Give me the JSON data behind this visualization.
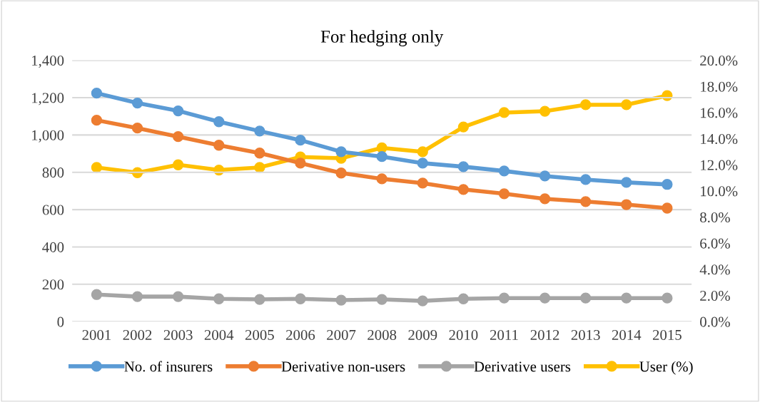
{
  "chart_data": {
    "type": "line",
    "title": "For hedging only",
    "categories": [
      "2001",
      "2002",
      "2003",
      "2004",
      "2005",
      "2006",
      "2007",
      "2008",
      "2009",
      "2010",
      "2011",
      "2012",
      "2013",
      "2014",
      "2015"
    ],
    "series": [
      {
        "name": "No. of insurers",
        "color": "#5b9bd5",
        "values": [
          1224,
          1171,
          1129,
          1071,
          1021,
          972,
          910,
          884,
          849,
          830,
          807,
          780,
          761,
          746,
          735
        ]
      },
      {
        "name": "Derivative non-users",
        "color": "#ed7d31",
        "values": [
          1079,
          1037,
          991,
          945,
          903,
          849,
          796,
          765,
          742,
          708,
          685,
          658,
          643,
          627,
          608
        ]
      },
      {
        "name": "Derivative users",
        "color": "#a5a5a5",
        "values": [
          145,
          134,
          134,
          122,
          119,
          122,
          115,
          119,
          111,
          122,
          126,
          126,
          126,
          126,
          126
        ]
      },
      {
        "name": "User (%)",
        "color": "#ffc000",
        "axis": "y2",
        "values": [
          11.8,
          11.4,
          12.0,
          11.6,
          11.8,
          12.6,
          12.5,
          13.3,
          13.0,
          14.9,
          16.0,
          16.1,
          16.6,
          16.6,
          17.3
        ]
      }
    ],
    "ylim": [
      0,
      1400
    ],
    "yticks": [
      {
        "value": 0,
        "label": "0"
      },
      {
        "value": 200,
        "label": "200"
      },
      {
        "value": 400,
        "label": "400"
      },
      {
        "value": 600,
        "label": "600"
      },
      {
        "value": 800,
        "label": "800"
      },
      {
        "value": 1000,
        "label": "1,000"
      },
      {
        "value": 1200,
        "label": "1,200"
      },
      {
        "value": 1400,
        "label": "1,400"
      }
    ],
    "y2lim": [
      0,
      20
    ],
    "y2ticks": [
      {
        "value": 0,
        "label": "0.0%"
      },
      {
        "value": 2,
        "label": "2.0%"
      },
      {
        "value": 4,
        "label": "4.0%"
      },
      {
        "value": 6,
        "label": "6.0%"
      },
      {
        "value": 8,
        "label": "8.0%"
      },
      {
        "value": 10,
        "label": "10.0%"
      },
      {
        "value": 12,
        "label": "12.0%"
      },
      {
        "value": 14,
        "label": "14.0%"
      },
      {
        "value": 16,
        "label": "16.0%"
      },
      {
        "value": 18,
        "label": "18.0%"
      },
      {
        "value": 20,
        "label": "20.0%"
      }
    ],
    "grid": "y",
    "legend": "bottom",
    "marker": "circle",
    "line_style": "solid"
  }
}
